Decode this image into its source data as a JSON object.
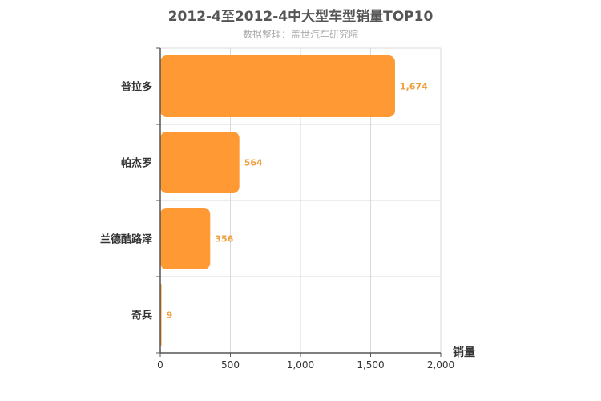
{
  "chart_data": {
    "type": "bar",
    "orientation": "horizontal",
    "title": "2012-4至2012-4中大型车型销量TOP10",
    "subtitle": "数据整理：盖世汽车研究院",
    "xlabel": "销量",
    "ylabel": "",
    "categories": [
      "普拉多",
      "帕杰罗",
      "兰德酷路泽",
      "奇兵"
    ],
    "values": [
      1674,
      564,
      356,
      9
    ],
    "value_labels": [
      "1,674",
      "564",
      "356",
      "9"
    ],
    "xlim": [
      0,
      2000
    ],
    "xticks": [
      0,
      500,
      1000,
      1500,
      2000
    ],
    "xtick_labels": [
      "0",
      "500",
      "1,000",
      "1,500",
      "2,000"
    ],
    "grid": true,
    "bar_color": "#FF9933",
    "label_color": "#F0A040"
  }
}
